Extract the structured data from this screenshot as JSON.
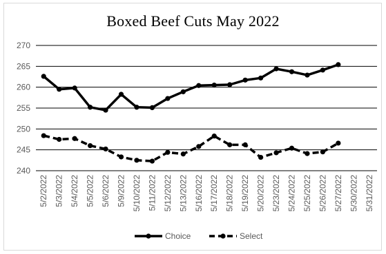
{
  "chart_data": {
    "type": "line",
    "title": "Boxed Beef Cuts May 2022",
    "xlabel": "",
    "ylabel": "",
    "categories": [
      "5/2/2022",
      "5/3/2022",
      "5/4/2022",
      "5/5/2022",
      "5/6/2022",
      "5/9/2022",
      "5/10/2022",
      "5/11/2022",
      "5/12/2022",
      "5/13/2022",
      "5/16/2022",
      "5/17/2022",
      "5/18/2022",
      "5/19/2022",
      "5/20/2022",
      "5/23/2022",
      "5/24/2022",
      "5/25/2022",
      "5/26/2022",
      "5/27/2022",
      "5/30/2022",
      "5/31/2022"
    ],
    "ylim": [
      240,
      270
    ],
    "yticks": [
      240,
      245,
      250,
      255,
      260,
      265,
      270
    ],
    "grid": true,
    "legend_position": "bottom",
    "series": [
      {
        "name": "Choice",
        "style": "solid",
        "color": "#000000",
        "values": [
          262.6,
          259.5,
          259.8,
          255.2,
          254.5,
          258.3,
          255.2,
          255.1,
          257.3,
          258.9,
          260.4,
          260.5,
          260.6,
          261.7,
          262.2,
          264.4,
          263.7,
          262.9,
          264.1,
          265.4,
          null,
          null
        ]
      },
      {
        "name": "Select",
        "style": "dashed",
        "color": "#000000",
        "values": [
          248.4,
          247.5,
          247.7,
          246.0,
          245.2,
          243.3,
          242.5,
          242.3,
          244.4,
          244.0,
          245.8,
          248.3,
          246.2,
          246.2,
          243.2,
          244.3,
          245.4,
          244.1,
          244.5,
          246.6,
          null,
          null
        ]
      }
    ]
  }
}
